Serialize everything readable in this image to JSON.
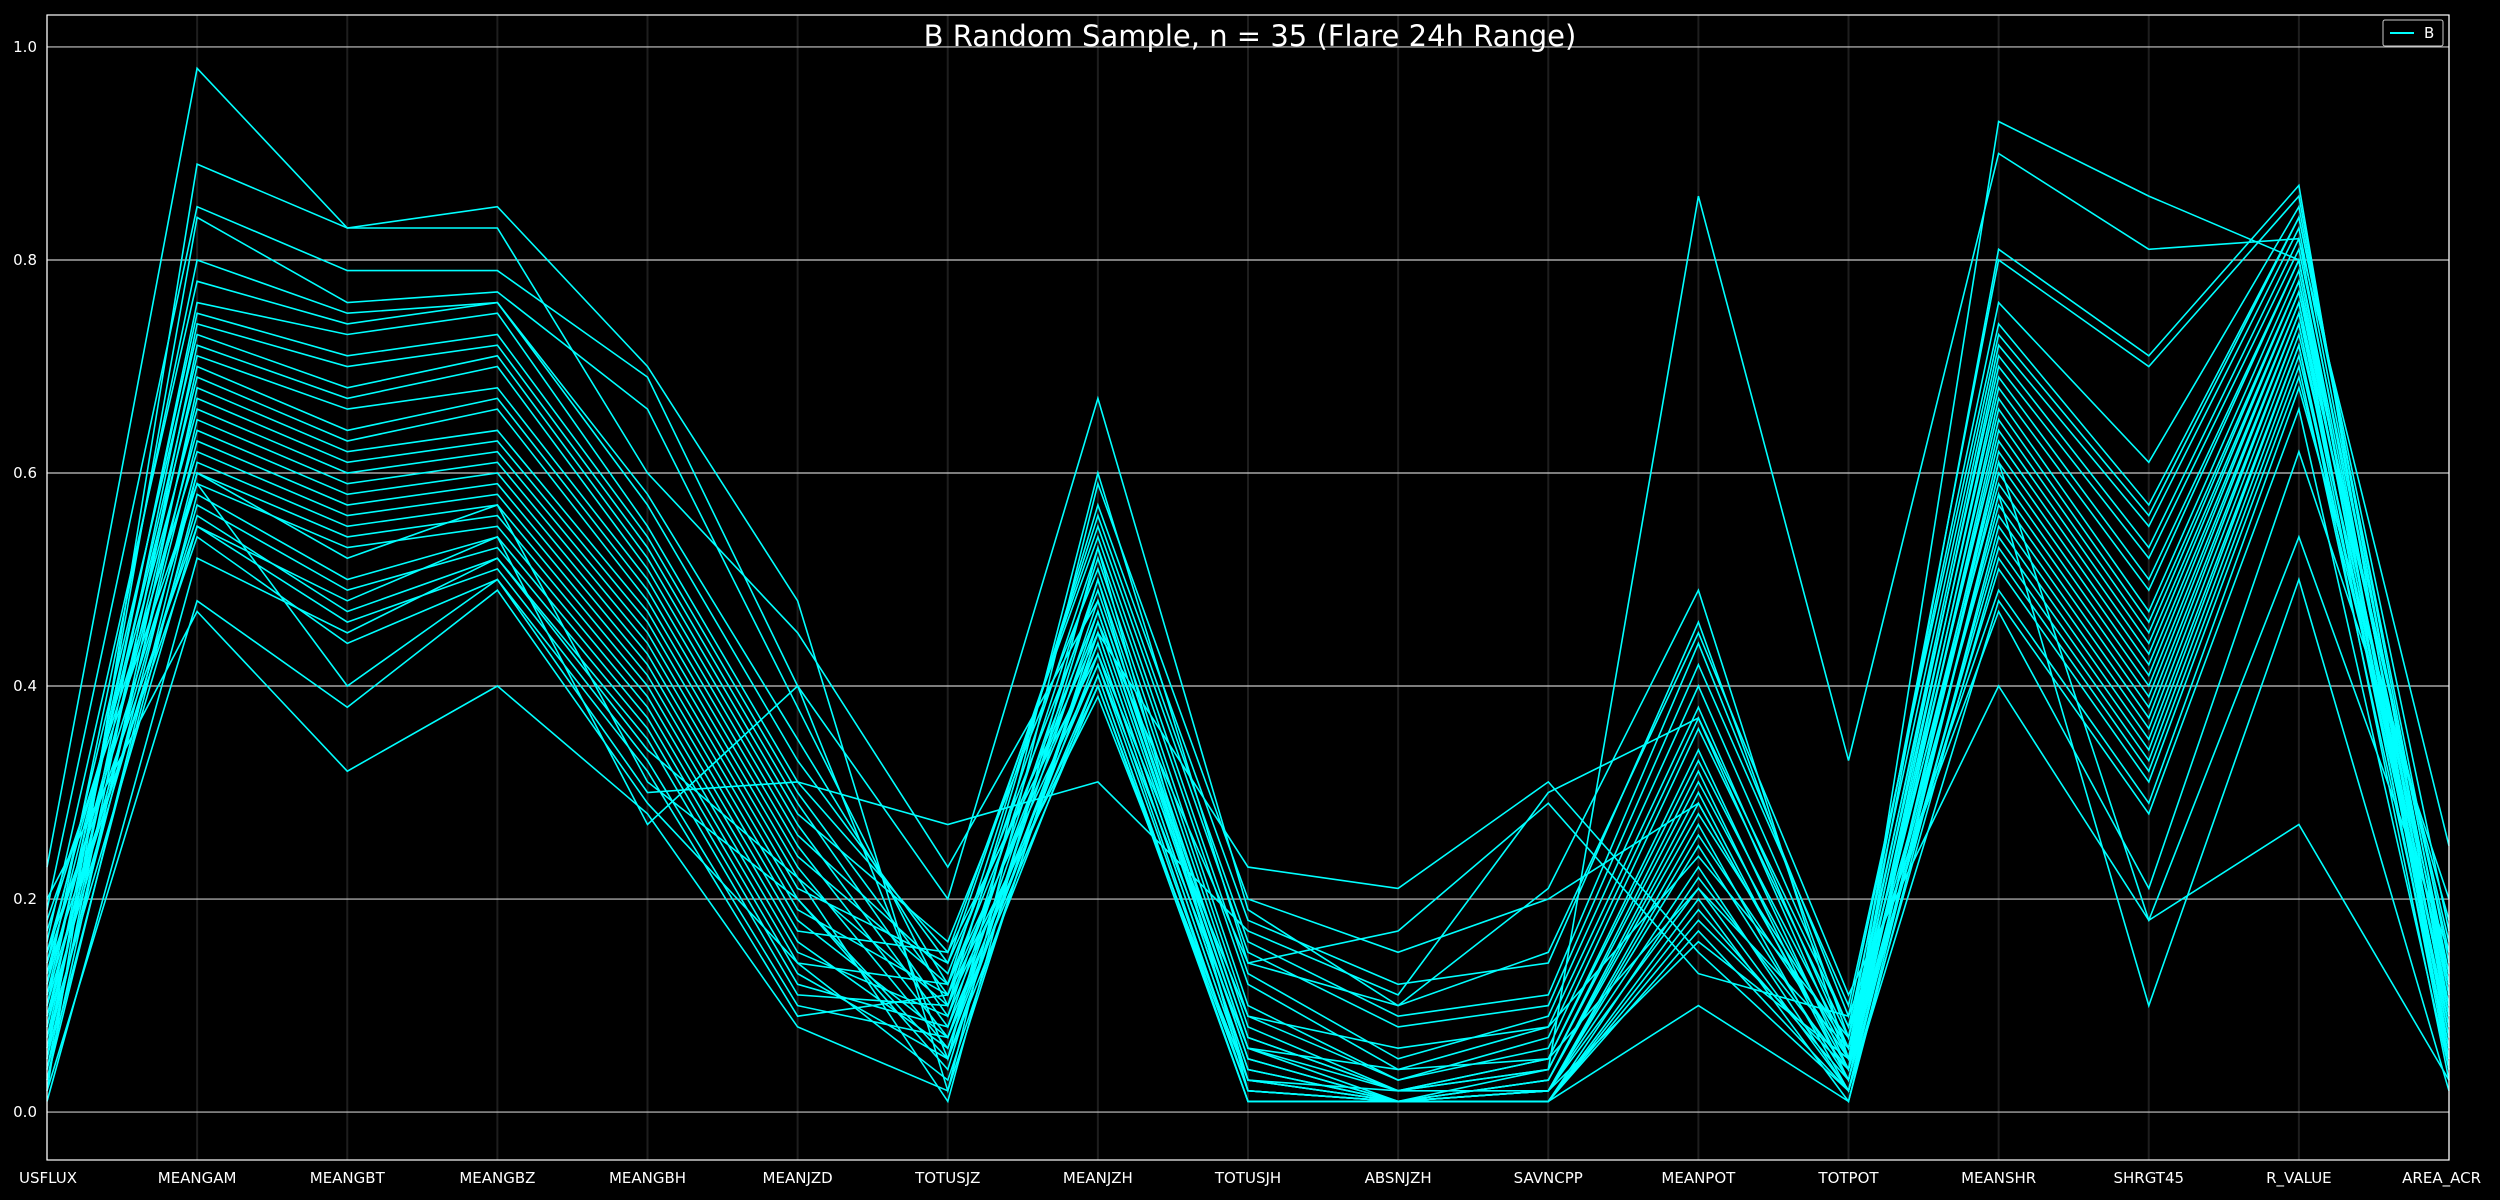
{
  "chart_data": {
    "type": "line",
    "subtype": "parallel-coordinates",
    "title": "B Random Sample, n = 35 (Flare 24h Range)",
    "xlabel": "",
    "ylabel": "",
    "ylim": [
      -0.045,
      1.03
    ],
    "yticks": [
      "0.0",
      "0.2",
      "0.4",
      "0.6",
      "0.8",
      "1.0"
    ],
    "ytick_values": [
      0.0,
      0.2,
      0.4,
      0.6,
      0.8,
      1.0
    ],
    "grid": "horizontal-major",
    "legend": {
      "position": "top-right",
      "entries": [
        {
          "label": "B",
          "color": "#00ffff"
        }
      ]
    },
    "colors": {
      "background": "#000000",
      "line": "#00ffff",
      "grid": "#c8c8c8",
      "text": "#ffffff"
    },
    "categories": [
      "USFLUX",
      "MEANGAM",
      "MEANGBT",
      "MEANGBZ",
      "MEANGBH",
      "MEANJZD",
      "TOTUSJZ",
      "MEANJZH",
      "TOTUSJH",
      "ABSNJZH",
      "SAVNCPP",
      "MEANPOT",
      "TOTPOT",
      "MEANSHR",
      "SHRGT45",
      "R_VALUE",
      "AREA_ACR"
    ],
    "series": [
      {
        "values": [
          0.23,
          0.98,
          0.83,
          0.85,
          0.7,
          0.48,
          0.02,
          0.59,
          0.2,
          0.15,
          0.2,
          0.29,
          0.04,
          0.93,
          0.86,
          0.8,
          0.05
        ]
      },
      {
        "values": [
          0.02,
          0.89,
          0.83,
          0.83,
          0.6,
          0.45,
          0.23,
          0.48,
          0.07,
          0.02,
          0.04,
          0.86,
          0.33,
          0.9,
          0.81,
          0.82,
          0.25
        ]
      },
      {
        "values": [
          0.19,
          0.85,
          0.79,
          0.79,
          0.69,
          0.4,
          0.05,
          0.6,
          0.14,
          0.1,
          0.21,
          0.49,
          0.05,
          0.81,
          0.71,
          0.87,
          0.04
        ]
      },
      {
        "values": [
          0.05,
          0.84,
          0.76,
          0.77,
          0.66,
          0.38,
          0.1,
          0.57,
          0.18,
          0.12,
          0.14,
          0.46,
          0.07,
          0.8,
          0.7,
          0.86,
          0.09
        ]
      },
      {
        "values": [
          0.12,
          0.8,
          0.75,
          0.76,
          0.58,
          0.35,
          0.12,
          0.56,
          0.16,
          0.09,
          0.11,
          0.44,
          0.09,
          0.76,
          0.61,
          0.85,
          0.12
        ]
      },
      {
        "values": [
          0.16,
          0.78,
          0.74,
          0.76,
          0.57,
          0.33,
          0.14,
          0.55,
          0.15,
          0.08,
          0.1,
          0.42,
          0.1,
          0.74,
          0.57,
          0.84,
          0.14
        ]
      },
      {
        "values": [
          0.08,
          0.76,
          0.73,
          0.75,
          0.55,
          0.31,
          0.15,
          0.54,
          0.13,
          0.05,
          0.09,
          0.4,
          0.08,
          0.73,
          0.56,
          0.84,
          0.17
        ]
      },
      {
        "values": [
          0.1,
          0.75,
          0.71,
          0.73,
          0.54,
          0.3,
          0.11,
          0.53,
          0.12,
          0.04,
          0.08,
          0.38,
          0.06,
          0.72,
          0.55,
          0.83,
          0.11
        ]
      },
      {
        "values": [
          0.06,
          0.74,
          0.7,
          0.72,
          0.53,
          0.29,
          0.09,
          0.52,
          0.1,
          0.03,
          0.07,
          0.37,
          0.05,
          0.71,
          0.53,
          0.82,
          0.08
        ]
      },
      {
        "values": [
          0.14,
          0.73,
          0.68,
          0.71,
          0.52,
          0.28,
          0.16,
          0.51,
          0.09,
          0.03,
          0.06,
          0.36,
          0.07,
          0.7,
          0.52,
          0.81,
          0.13
        ]
      },
      {
        "values": [
          0.04,
          0.72,
          0.67,
          0.7,
          0.51,
          0.27,
          0.08,
          0.5,
          0.08,
          0.02,
          0.05,
          0.34,
          0.04,
          0.69,
          0.5,
          0.8,
          0.06
        ]
      },
      {
        "values": [
          0.11,
          0.71,
          0.66,
          0.68,
          0.5,
          0.26,
          0.13,
          0.49,
          0.07,
          0.02,
          0.05,
          0.33,
          0.06,
          0.68,
          0.49,
          0.8,
          0.1
        ]
      },
      {
        "values": [
          0.07,
          0.7,
          0.64,
          0.67,
          0.49,
          0.25,
          0.07,
          0.48,
          0.06,
          0.01,
          0.04,
          0.32,
          0.03,
          0.67,
          0.47,
          0.79,
          0.07
        ]
      },
      {
        "values": [
          0.13,
          0.69,
          0.63,
          0.66,
          0.48,
          0.24,
          0.12,
          0.47,
          0.06,
          0.02,
          0.04,
          0.31,
          0.05,
          0.66,
          0.46,
          0.78,
          0.12
        ]
      },
      {
        "values": [
          0.03,
          0.68,
          0.62,
          0.64,
          0.47,
          0.23,
          0.06,
          0.47,
          0.05,
          0.01,
          0.03,
          0.3,
          0.03,
          0.65,
          0.45,
          0.78,
          0.05
        ]
      },
      {
        "values": [
          0.09,
          0.67,
          0.61,
          0.63,
          0.46,
          0.22,
          0.1,
          0.46,
          0.05,
          0.01,
          0.03,
          0.29,
          0.04,
          0.64,
          0.44,
          0.77,
          0.09
        ]
      },
      {
        "values": [
          0.15,
          0.66,
          0.6,
          0.62,
          0.45,
          0.21,
          0.14,
          0.45,
          0.04,
          0.01,
          0.03,
          0.28,
          0.06,
          0.63,
          0.43,
          0.77,
          0.15
        ]
      },
      {
        "values": [
          0.05,
          0.65,
          0.59,
          0.61,
          0.44,
          0.2,
          0.05,
          0.45,
          0.04,
          0.01,
          0.02,
          0.27,
          0.02,
          0.62,
          0.42,
          0.76,
          0.04
        ]
      },
      {
        "values": [
          0.12,
          0.64,
          0.58,
          0.6,
          0.43,
          0.19,
          0.11,
          0.44,
          0.03,
          0.01,
          0.02,
          0.26,
          0.05,
          0.61,
          0.41,
          0.76,
          0.11
        ]
      },
      {
        "values": [
          0.08,
          0.63,
          0.57,
          0.59,
          0.42,
          0.18,
          0.07,
          0.44,
          0.03,
          0.01,
          0.02,
          0.25,
          0.03,
          0.6,
          0.4,
          0.75,
          0.07
        ]
      },
      {
        "values": [
          0.17,
          0.62,
          0.56,
          0.58,
          0.41,
          0.17,
          0.15,
          0.43,
          0.09,
          0.06,
          0.08,
          0.24,
          0.07,
          0.59,
          0.39,
          0.75,
          0.16
        ]
      },
      {
        "values": [
          0.06,
          0.61,
          0.55,
          0.57,
          0.4,
          0.16,
          0.06,
          0.43,
          0.02,
          0.01,
          0.02,
          0.23,
          0.02,
          0.58,
          0.38,
          0.74,
          0.05
        ]
      },
      {
        "values": [
          0.1,
          0.6,
          0.54,
          0.56,
          0.39,
          0.15,
          0.09,
          0.42,
          0.02,
          0.01,
          0.01,
          0.22,
          0.04,
          0.57,
          0.37,
          0.74,
          0.09
        ]
      },
      {
        "values": [
          0.14,
          0.59,
          0.53,
          0.55,
          0.38,
          0.14,
          0.12,
          0.42,
          0.06,
          0.04,
          0.05,
          0.21,
          0.06,
          0.56,
          0.36,
          0.73,
          0.13
        ]
      },
      {
        "values": [
          0.04,
          0.58,
          0.5,
          0.54,
          0.37,
          0.13,
          0.05,
          0.41,
          0.01,
          0.01,
          0.01,
          0.2,
          0.01,
          0.55,
          0.35,
          0.72,
          0.03
        ]
      },
      {
        "values": [
          0.09,
          0.57,
          0.49,
          0.53,
          0.36,
          0.12,
          0.08,
          0.41,
          0.01,
          0.01,
          0.01,
          0.19,
          0.03,
          0.54,
          0.34,
          0.72,
          0.08
        ]
      },
      {
        "values": [
          0.11,
          0.56,
          0.47,
          0.52,
          0.35,
          0.11,
          0.1,
          0.4,
          0.02,
          0.01,
          0.01,
          0.18,
          0.04,
          0.53,
          0.33,
          0.71,
          0.1
        ]
      },
      {
        "values": [
          0.07,
          0.55,
          0.46,
          0.51,
          0.33,
          0.1,
          0.07,
          0.4,
          0.01,
          0.01,
          0.01,
          0.17,
          0.02,
          0.52,
          0.32,
          0.7,
          0.06
        ]
      },
      {
        "values": [
          0.13,
          0.54,
          0.44,
          0.5,
          0.32,
          0.09,
          0.11,
          0.39,
          0.03,
          0.02,
          0.02,
          0.16,
          0.05,
          0.51,
          0.31,
          0.69,
          0.12
        ]
      },
      {
        "values": [
          0.18,
          0.59,
          0.4,
          0.5,
          0.3,
          0.31,
          0.27,
          0.31,
          0.17,
          0.11,
          0.3,
          0.37,
          0.08,
          0.49,
          0.29,
          0.68,
          0.18
        ]
      },
      {
        "values": [
          0.02,
          0.48,
          0.38,
          0.49,
          0.29,
          0.14,
          0.03,
          0.45,
          0.23,
          0.21,
          0.31,
          0.15,
          0.02,
          0.48,
          0.28,
          0.66,
          0.04
        ]
      },
      {
        "values": [
          0.2,
          0.47,
          0.32,
          0.4,
          0.28,
          0.08,
          0.02,
          0.46,
          0.14,
          0.17,
          0.29,
          0.13,
          0.09,
          0.47,
          0.21,
          0.62,
          0.2
        ]
      },
      {
        "values": [
          0.15,
          0.55,
          0.48,
          0.54,
          0.27,
          0.4,
          0.2,
          0.67,
          0.19,
          0.1,
          0.15,
          0.45,
          0.11,
          0.4,
          0.18,
          0.54,
          0.15
        ]
      },
      {
        "values": [
          0.01,
          0.52,
          0.45,
          0.52,
          0.34,
          0.22,
          0.01,
          0.53,
          0.02,
          0.01,
          0.01,
          0.1,
          0.01,
          0.58,
          0.1,
          0.5,
          0.02
        ]
      },
      {
        "values": [
          0.03,
          0.6,
          0.52,
          0.57,
          0.31,
          0.2,
          0.04,
          0.5,
          0.03,
          0.01,
          0.02,
          0.21,
          0.02,
          0.61,
          0.18,
          0.27,
          0.03
        ]
      }
    ]
  }
}
